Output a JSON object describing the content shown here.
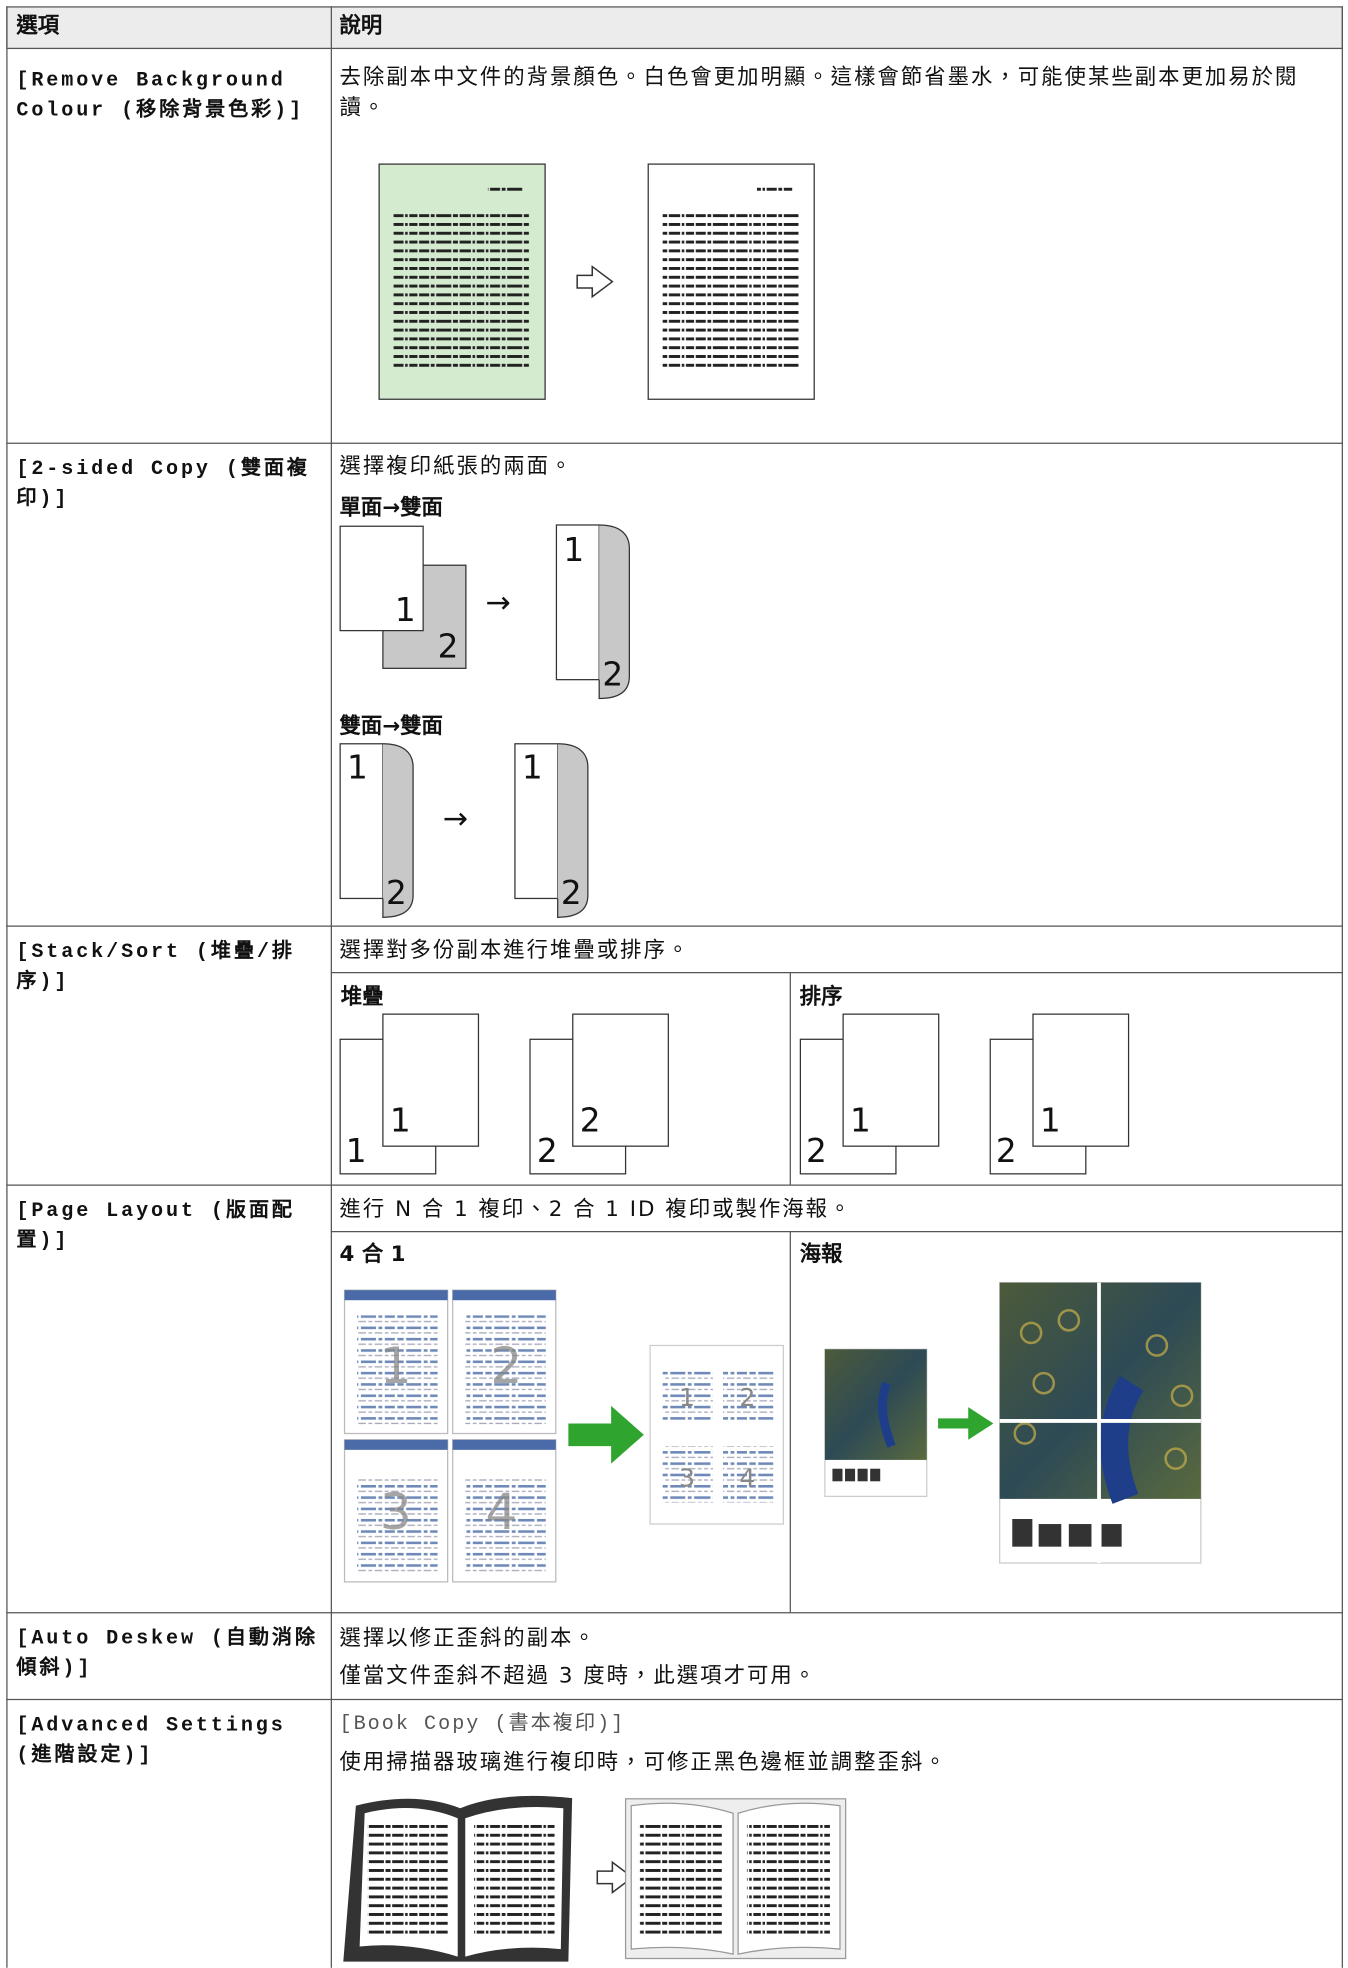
{
  "header": {
    "option": "選項",
    "description": "說明"
  },
  "rows": [
    {
      "option": "[Remove Background Colour (移除背景色彩)]",
      "description": "去除副本中文件的背景顏色。白色會更加明顯。這樣會節省墨水，可能使某些副本更加易於閱讀。"
    },
    {
      "option": "[2-sided Copy (雙面複印)]",
      "description": "選擇複印紙張的兩面。",
      "figure_labels": [
        "單面→雙面",
        "雙面→雙面"
      ],
      "page_numbers": [
        "1",
        "2"
      ]
    },
    {
      "option": "[Stack/Sort (堆疊/排序)]",
      "description": "選擇對多份副本進行堆疊或排序。",
      "panels": [
        "堆疊",
        "排序"
      ],
      "page_numbers": [
        "1",
        "2"
      ]
    },
    {
      "option": "[Page Layout (版面配置)]",
      "description": "進行 N 合 1 複印、2 合 1 ID 複印或製作海報。",
      "panels": [
        "4 合 1",
        "海報"
      ],
      "page_numbers": [
        "1",
        "2",
        "3",
        "4"
      ]
    },
    {
      "option": "[Auto Deskew (自動消除傾斜)]",
      "description": [
        "選擇以修正歪斜的副本。",
        "僅當文件歪斜不超過 3 度時，此選項才可用。"
      ]
    },
    {
      "option": "[Advanced Settings (進階設定)]",
      "setting": "[Book Copy (書本複印)]",
      "description": "使用掃描器玻璃進行複印時，可修正黑色邊框並調整歪斜。"
    }
  ]
}
